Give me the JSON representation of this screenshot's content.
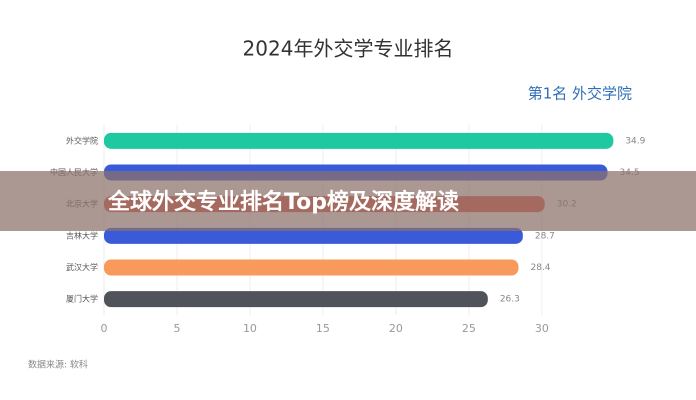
{
  "chart_data": {
    "type": "bar",
    "orientation": "horizontal",
    "title": "2024年外交学专业排名",
    "subtitle": "第1名 外交学院",
    "source": "数据来源: 软科",
    "categories": [
      "外交学院",
      "中国人民大学",
      "北京大学",
      "吉林大学",
      "武汉大学",
      "厦门大学"
    ],
    "values": [
      34.9,
      34.5,
      30.2,
      28.7,
      28.4,
      26.3
    ],
    "colors": [
      "#1ec8a0",
      "#3a5bd9",
      "#e0594e",
      "#3a5bd9",
      "#f89a5b",
      "#505359"
    ],
    "xlim": [
      0,
      35
    ],
    "xticks": [
      0,
      5,
      10,
      15,
      20,
      25,
      30
    ],
    "grid": true
  },
  "banner": {
    "text": "全球外交专业排名Top榜及深度解读"
  }
}
